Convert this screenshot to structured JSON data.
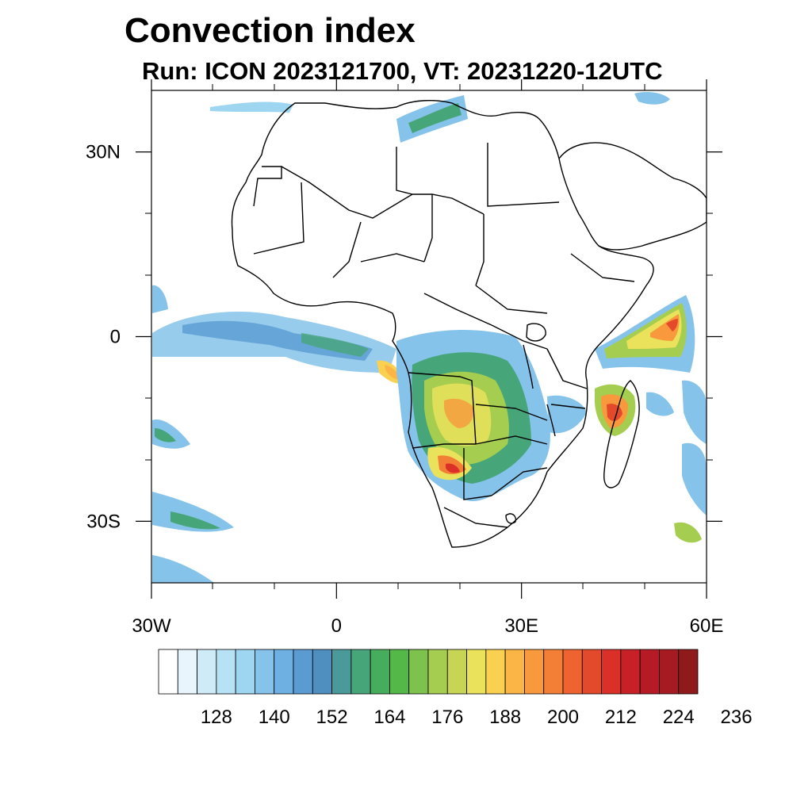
{
  "title": "Convection index",
  "subtitle": "Run: ICON 2023121700,  VT: 20231220-12UTC",
  "map": {
    "projection": "cylindrical equidistant",
    "lon_range": [
      -30,
      60
    ],
    "lat_range": [
      -40,
      40
    ],
    "lat_ticks": [
      {
        "value": 30,
        "label": "30N"
      },
      {
        "value": 0,
        "label": "0"
      },
      {
        "value": -30,
        "label": "30S"
      }
    ],
    "lon_ticks": [
      {
        "value": -30,
        "label": "30W"
      },
      {
        "value": 0,
        "label": "0"
      },
      {
        "value": 30,
        "label": "30E"
      },
      {
        "value": 60,
        "label": "60E"
      }
    ]
  },
  "colorbar": {
    "colors": [
      "#ffffff",
      "#e8f5fc",
      "#cfebf8",
      "#b7e2f5",
      "#9ed6f2",
      "#86c3ea",
      "#6db0e1",
      "#5a9bd2",
      "#4f8fbf",
      "#4b9a9a",
      "#47a57a",
      "#45ad5c",
      "#54b848",
      "#7cc24c",
      "#a5cd50",
      "#c6d654",
      "#eae25b",
      "#f9d04f",
      "#fbb446",
      "#f8993d",
      "#f37e35",
      "#ee632f",
      "#e34a2b",
      "#da3028",
      "#c72127",
      "#b51a25",
      "#a61a22",
      "#8f1a1c"
    ],
    "tick_labels": [
      "128",
      "140",
      "152",
      "164",
      "176",
      "188",
      "200",
      "212",
      "224",
      "236"
    ]
  }
}
